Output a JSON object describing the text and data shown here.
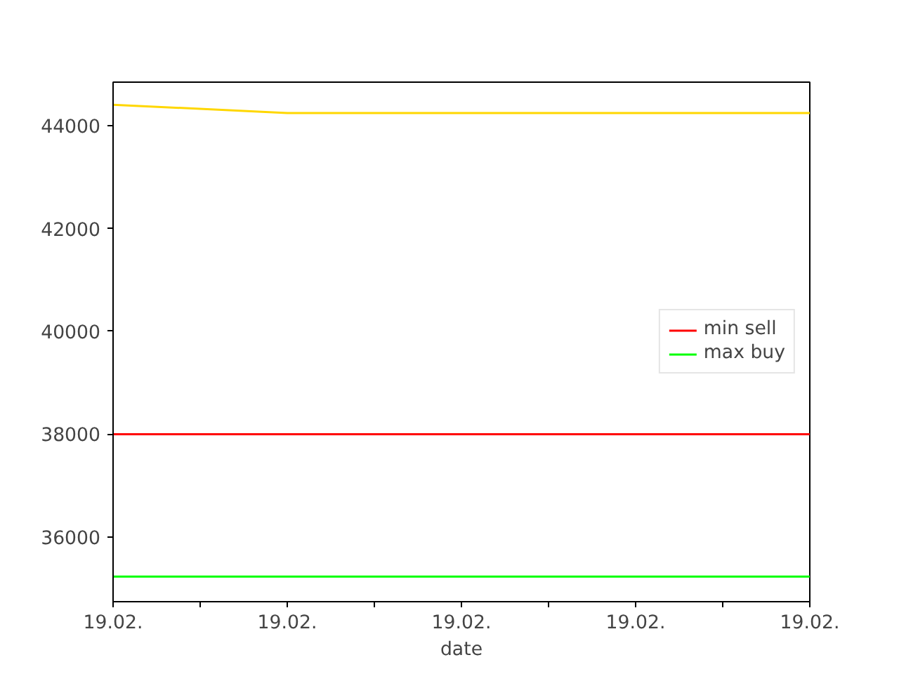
{
  "chart_data": {
    "type": "line",
    "xlabel": "date",
    "categories": [
      "19.02.",
      "19.02.",
      "19.02.",
      "19.02.",
      "19.02."
    ],
    "series": [
      {
        "name": "min sell",
        "color": "#ff0000",
        "values": [
          38000,
          38000,
          38000,
          38000,
          38000
        ]
      },
      {
        "name": "max buy",
        "color": "#00ff00",
        "values": [
          35230,
          35230,
          35230,
          35230,
          35230
        ]
      },
      {
        "color": "#ffd700",
        "values": [
          44410,
          44250,
          44250,
          44250,
          44250
        ]
      }
    ],
    "ylim": [
      34740,
      44850
    ],
    "yticks": [
      36000,
      38000,
      40000,
      42000,
      44000
    ],
    "legend": "right",
    "grid": false,
    "marker": "none",
    "line_style": "solid"
  }
}
